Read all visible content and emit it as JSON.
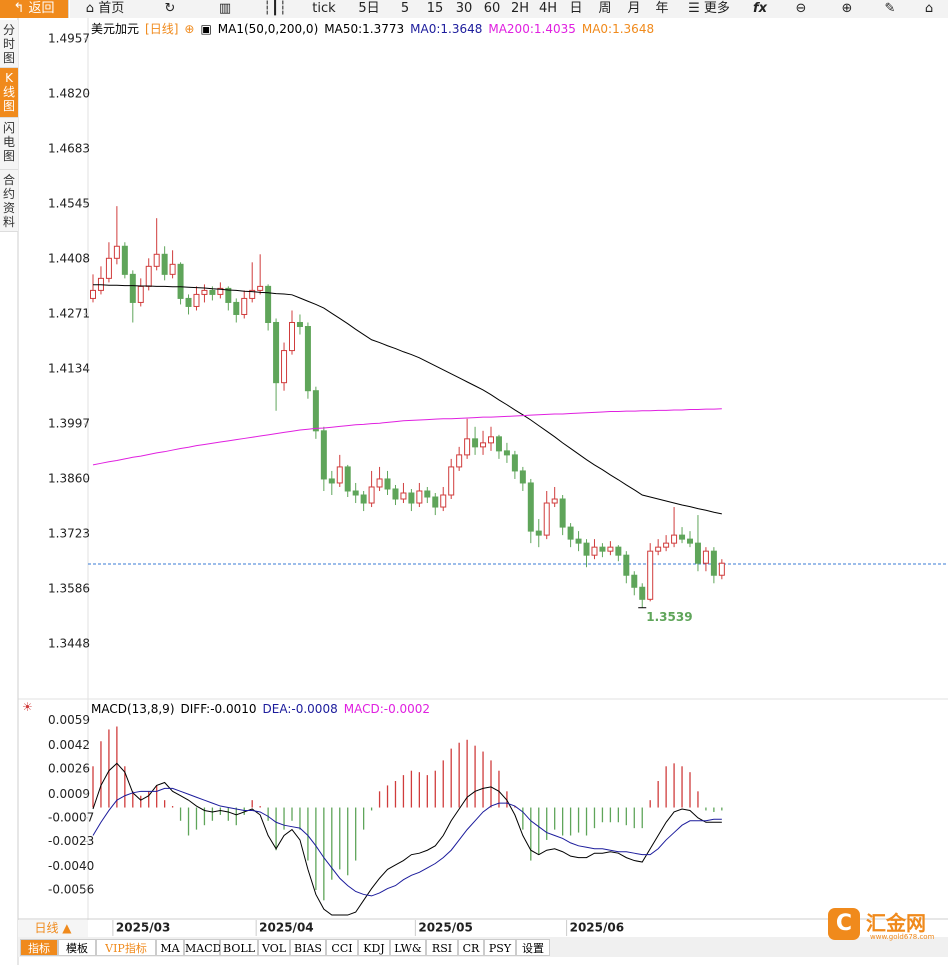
{
  "toolbar": [
    "返回",
    "首页",
    "tick",
    "5日",
    "5",
    "15",
    "30",
    "60",
    "2H",
    "4H",
    "日",
    "周",
    "月",
    "年",
    "更多"
  ],
  "sidebar": [
    "分时图",
    "K线图",
    "闪电图",
    "合约资料"
  ],
  "chart_data": [
    {
      "type": "candlestick",
      "title": "美元加元",
      "period": "[日线]",
      "legend": [
        {
          "text": "MA1(50,0,200,0)",
          "color": "#000000"
        },
        {
          "text": "MA50:1.3773",
          "color": "#000000"
        },
        {
          "text": "MA0:1.3648",
          "color": "#1c1c9c"
        },
        {
          "text": "MA200:1.4035",
          "color": "#e020e0"
        },
        {
          "text": "MA0:1.3648",
          "color": "#f08a1c"
        }
      ],
      "categories": [
        null,
        null,
        null,
        "2025/03",
        null,
        null,
        null,
        null,
        null,
        null,
        null,
        null,
        null,
        null,
        null,
        null,
        null,
        null,
        null,
        null,
        null,
        "2025/04",
        null,
        null,
        null,
        null,
        null,
        null,
        null,
        null,
        null,
        null,
        null,
        null,
        null,
        null,
        null,
        null,
        null,
        null,
        null,
        "2025/05",
        null,
        null,
        null,
        null,
        null,
        null,
        null,
        null,
        null,
        null,
        null,
        null,
        null,
        null,
        null,
        null,
        null,
        null,
        "2025/06",
        null,
        null,
        null,
        null,
        null,
        null,
        null,
        null,
        null,
        null,
        null,
        null,
        null,
        null,
        null,
        null,
        null,
        null,
        null
      ],
      "ohlc": [
        [
          1.431,
          1.437,
          1.43,
          1.433
        ],
        [
          1.433,
          1.439,
          1.432,
          1.436
        ],
        [
          1.436,
          1.445,
          1.435,
          1.441
        ],
        [
          1.441,
          1.454,
          1.4395,
          1.444
        ],
        [
          1.444,
          1.445,
          1.436,
          1.437
        ],
        [
          1.437,
          1.438,
          1.425,
          1.43
        ],
        [
          1.43,
          1.436,
          1.429,
          1.434
        ],
        [
          1.434,
          1.441,
          1.433,
          1.439
        ],
        [
          1.439,
          1.451,
          1.438,
          1.442
        ],
        [
          1.442,
          1.444,
          1.4355,
          1.437
        ],
        [
          1.437,
          1.443,
          1.436,
          1.4395
        ],
        [
          1.4395,
          1.44,
          1.4295,
          1.431
        ],
        [
          1.431,
          1.432,
          1.427,
          1.429
        ],
        [
          1.429,
          1.434,
          1.428,
          1.432
        ],
        [
          1.432,
          1.4345,
          1.43,
          1.433
        ],
        [
          1.433,
          1.434,
          1.4305,
          1.432
        ],
        [
          1.432,
          1.435,
          1.431,
          1.4335
        ],
        [
          1.4335,
          1.434,
          1.428,
          1.43
        ],
        [
          1.43,
          1.431,
          1.425,
          1.427
        ],
        [
          1.427,
          1.433,
          1.426,
          1.431
        ],
        [
          1.431,
          1.44,
          1.43,
          1.433
        ],
        [
          1.433,
          1.442,
          1.432,
          1.434
        ],
        [
          1.434,
          1.4345,
          1.423,
          1.425
        ],
        [
          1.425,
          1.426,
          1.403,
          1.41
        ],
        [
          1.41,
          1.42,
          1.408,
          1.418
        ],
        [
          1.418,
          1.428,
          1.417,
          1.425
        ],
        [
          1.425,
          1.427,
          1.422,
          1.424
        ],
        [
          1.424,
          1.425,
          1.406,
          1.408
        ],
        [
          1.408,
          1.409,
          1.396,
          1.398
        ],
        [
          1.398,
          1.399,
          1.383,
          1.386
        ],
        [
          1.386,
          1.388,
          1.382,
          1.385
        ],
        [
          1.385,
          1.392,
          1.384,
          1.389
        ],
        [
          1.389,
          1.3895,
          1.3815,
          1.383
        ],
        [
          1.383,
          1.385,
          1.38,
          1.382
        ],
        [
          1.382,
          1.383,
          1.378,
          1.38
        ],
        [
          1.38,
          1.388,
          1.379,
          1.384
        ],
        [
          1.384,
          1.389,
          1.383,
          1.386
        ],
        [
          1.386,
          1.388,
          1.382,
          1.3835
        ],
        [
          1.3835,
          1.3845,
          1.3795,
          1.381
        ],
        [
          1.381,
          1.385,
          1.38,
          1.3825
        ],
        [
          1.3825,
          1.3835,
          1.378,
          1.38
        ],
        [
          1.38,
          1.385,
          1.379,
          1.383
        ],
        [
          1.383,
          1.384,
          1.38,
          1.3815
        ],
        [
          1.3815,
          1.3825,
          1.377,
          1.379
        ],
        [
          1.379,
          1.384,
          1.378,
          1.382
        ],
        [
          1.382,
          1.391,
          1.381,
          1.389
        ],
        [
          1.389,
          1.394,
          1.388,
          1.392
        ],
        [
          1.392,
          1.401,
          1.391,
          1.396
        ],
        [
          1.396,
          1.399,
          1.392,
          1.394
        ],
        [
          1.394,
          1.398,
          1.392,
          1.395
        ],
        [
          1.395,
          1.399,
          1.393,
          1.3965
        ],
        [
          1.3965,
          1.397,
          1.391,
          1.393
        ],
        [
          1.393,
          1.395,
          1.39,
          1.392
        ],
        [
          1.392,
          1.393,
          1.386,
          1.388
        ],
        [
          1.388,
          1.389,
          1.383,
          1.385
        ],
        [
          1.385,
          1.386,
          1.37,
          1.373
        ],
        [
          1.373,
          1.376,
          1.369,
          1.372
        ],
        [
          1.372,
          1.383,
          1.371,
          1.38
        ],
        [
          1.38,
          1.384,
          1.379,
          1.381
        ],
        [
          1.381,
          1.382,
          1.372,
          1.374
        ],
        [
          1.374,
          1.375,
          1.369,
          1.371
        ],
        [
          1.371,
          1.373,
          1.368,
          1.37
        ],
        [
          1.37,
          1.371,
          1.364,
          1.367
        ],
        [
          1.367,
          1.371,
          1.366,
          1.369
        ],
        [
          1.369,
          1.37,
          1.3665,
          1.368
        ],
        [
          1.368,
          1.3705,
          1.367,
          1.369
        ],
        [
          1.369,
          1.3695,
          1.3655,
          1.367
        ],
        [
          1.367,
          1.368,
          1.36,
          1.362
        ],
        [
          1.362,
          1.363,
          1.357,
          1.359
        ],
        [
          1.359,
          1.36,
          1.3539,
          1.356
        ],
        [
          1.356,
          1.37,
          1.3555,
          1.368
        ],
        [
          1.368,
          1.371,
          1.367,
          1.369
        ],
        [
          1.369,
          1.372,
          1.368,
          1.37
        ],
        [
          1.37,
          1.379,
          1.369,
          1.372
        ],
        [
          1.372,
          1.374,
          1.37,
          1.371
        ],
        [
          1.371,
          1.373,
          1.369,
          1.37
        ],
        [
          1.37,
          1.377,
          1.363,
          1.365
        ],
        [
          1.365,
          1.369,
          1.363,
          1.368
        ],
        [
          1.368,
          1.369,
          1.36,
          1.362
        ],
        [
          1.362,
          1.366,
          1.361,
          1.365
        ]
      ],
      "up_color": "#d03c3c",
      "down_color": "#5fa55a",
      "series": [
        {
          "color": "#000000",
          "values": [
            1.4344,
            1.4344,
            1.4343,
            1.4343,
            1.4342,
            1.4342,
            1.4341,
            1.4341,
            1.434,
            1.434,
            1.4339,
            1.4339,
            1.4338,
            1.4337,
            1.4336,
            1.4334,
            1.4333,
            1.4331,
            1.433,
            1.4328,
            1.4327,
            1.4325,
            1.4324,
            1.4322,
            1.4321,
            1.4319,
            1.4311,
            1.4303,
            1.4295,
            1.4286,
            1.4273,
            1.426,
            1.4247,
            1.4233,
            1.422,
            1.4207,
            1.42,
            1.4192,
            1.4185,
            1.4177,
            1.417,
            1.4162,
            1.4152,
            1.4142,
            1.4132,
            1.4122,
            1.4112,
            1.4102,
            1.4092,
            1.4082,
            1.407,
            1.4057,
            1.4045,
            1.4032,
            1.402,
            1.4007,
            1.3993,
            1.3979,
            1.3965,
            1.395,
            1.3936,
            1.3922,
            1.3908,
            1.3895,
            1.3883,
            1.387,
            1.3858,
            1.3845,
            1.3833,
            1.382,
            1.3815,
            1.381,
            1.3805,
            1.38,
            1.3795,
            1.3791,
            1.3786,
            1.3782,
            1.3777,
            1.3773
          ]
        },
        {
          "color": "#e020e0",
          "values": [
            1.3895,
            1.3899,
            1.3903,
            1.3906,
            1.391,
            1.3914,
            1.3917,
            1.3921,
            1.3925,
            1.3928,
            1.3932,
            1.3936,
            1.3939,
            1.3943,
            1.3946,
            1.3949,
            1.3952,
            1.3955,
            1.3958,
            1.3961,
            1.3964,
            1.3967,
            1.397,
            1.3973,
            1.3976,
            1.3979,
            1.3982,
            1.3984,
            1.3986,
            1.3987,
            1.3989,
            1.3991,
            1.3993,
            1.3995,
            1.3996,
            1.3998,
            1.3999,
            1.4001,
            1.4003,
            1.4005,
            1.4006,
            1.4007,
            1.4008,
            1.4009,
            1.401,
            1.401,
            1.4011,
            1.4012,
            1.4013,
            1.4014,
            1.4014,
            1.4015,
            1.4016,
            1.4017,
            1.4018,
            1.4019,
            1.402,
            1.4021,
            1.4022,
            1.4022,
            1.4023,
            1.4024,
            1.4025,
            1.4026,
            1.4027,
            1.4028,
            1.4028,
            1.4029,
            1.4029,
            1.403,
            1.403,
            1.4031,
            1.4031,
            1.4032,
            1.4032,
            1.4033,
            1.4033,
            1.4034,
            1.4034,
            1.4035
          ]
        }
      ],
      "last_price": 1.3648,
      "last_price_color": "#3a7bd5",
      "low_label": 1.3539,
      "ylim": [
        1.3314,
        1.5009
      ],
      "yticks": [
        1.4957,
        {
          "value": 1.482,
          "label": "1.4820"
        },
        1.4683,
        1.4545,
        1.4408,
        1.4271,
        1.4134,
        1.3997,
        {
          "value": 1.386,
          "label": "1.3860"
        },
        1.3723,
        1.3586,
        1.3448
      ]
    },
    {
      "type": "macd",
      "legend": [
        {
          "text": "MACD(13,8,9)",
          "color": "#000000"
        },
        {
          "text": "DIFF:-0.0010",
          "color": "#000000"
        },
        {
          "text": "DEA:-0.0008",
          "color": "#1c1c9c"
        },
        {
          "text": "MACD:-0.0002",
          "color": "#e020e0"
        }
      ],
      "histogram": [
        0.0028,
        0.0045,
        0.0053,
        0.0055,
        0.0028,
        0.0011,
        0.0008,
        0.0011,
        0.0015,
        0.0005,
        0.0001,
        -0.0009,
        -0.0019,
        -0.0015,
        -0.0012,
        -0.0009,
        -0.0005,
        -0.0009,
        -0.0012,
        -0.0005,
        0.0005,
        0.0001,
        -0.0009,
        -0.0029,
        -0.0015,
        -0.0009,
        -0.0015,
        -0.0036,
        -0.0056,
        -0.0063,
        -0.0049,
        -0.0042,
        -0.0046,
        -0.0036,
        -0.0015,
        -0.0002,
        0.0011,
        0.0015,
        0.0018,
        0.0022,
        0.0025,
        0.0024,
        0.0022,
        0.0025,
        0.0032,
        0.004,
        0.0044,
        0.0046,
        0.0042,
        0.0038,
        0.0032,
        0.0025,
        0.0011,
        0.0001,
        -0.0015,
        -0.0036,
        -0.0032,
        -0.0022,
        -0.0015,
        -0.0019,
        -0.0019,
        -0.0017,
        -0.0019,
        -0.0014,
        -0.001,
        -0.001,
        -0.001,
        -0.0012,
        -0.0014,
        -0.0014,
        0.0005,
        0.0018,
        0.0028,
        0.003,
        0.0028,
        0.0024,
        0.0011,
        -0.0002,
        -0.0003,
        -0.0002
      ],
      "up_color": "#d03c3c",
      "down_color": "#5fa55a",
      "series": [
        {
          "color": "#000000",
          "values": [
            -0.0001,
            0.0015,
            0.0025,
            0.003,
            0.0024,
            0.001,
            0.0005,
            0.0008,
            0.0015,
            0.0017,
            0.0011,
            0.0008,
            0.0005,
            0.0001,
            -0.0002,
            -0.0003,
            -0.0002,
            -0.0003,
            -0.0005,
            -0.0003,
            -0.0001,
            -0.0005,
            -0.0019,
            -0.0028,
            -0.0019,
            -0.0015,
            -0.0022,
            -0.0042,
            -0.0059,
            -0.0069,
            -0.0073,
            -0.0073,
            -0.0073,
            -0.0071,
            -0.0063,
            -0.0055,
            -0.0048,
            -0.0042,
            -0.0039,
            -0.0036,
            -0.0032,
            -0.0031,
            -0.0029,
            -0.0026,
            -0.0019,
            -0.0009,
            -0.0001,
            0.0007,
            0.0011,
            0.0013,
            0.0014,
            0.0011,
            0.0005,
            -0.0005,
            -0.0019,
            -0.0029,
            -0.0032,
            -0.0029,
            -0.0028,
            -0.003,
            -0.0033,
            -0.0034,
            -0.0034,
            -0.0031,
            -0.0031,
            -0.003,
            -0.0031,
            -0.0034,
            -0.0036,
            -0.0037,
            -0.0028,
            -0.0019,
            -0.001,
            -0.0003,
            -0.0001,
            -0.0002,
            -0.0007,
            -0.001,
            -0.001,
            -0.001
          ]
        },
        {
          "color": "#1c1c9c",
          "values": [
            -0.0019,
            -0.001,
            -0.0002,
            0.0005,
            0.0008,
            0.001,
            0.0011,
            0.0011,
            0.0011,
            0.0013,
            0.0013,
            0.0011,
            0.0009,
            0.0007,
            0.0005,
            0.0003,
            0.0001,
            0.0,
            -0.0001,
            -0.0002,
            -0.0002,
            -0.0003,
            -0.0006,
            -0.001,
            -0.0012,
            -0.0013,
            -0.0014,
            -0.0019,
            -0.0026,
            -0.0034,
            -0.0041,
            -0.0048,
            -0.0053,
            -0.0057,
            -0.0059,
            -0.006,
            -0.0058,
            -0.0055,
            -0.0053,
            -0.0049,
            -0.0046,
            -0.0044,
            -0.0041,
            -0.0038,
            -0.0034,
            -0.0029,
            -0.0022,
            -0.0015,
            -0.0009,
            -0.0003,
            0.0001,
            0.0003,
            0.0003,
            0.0001,
            -0.0003,
            -0.0009,
            -0.0013,
            -0.0017,
            -0.0019,
            -0.0021,
            -0.0024,
            -0.0026,
            -0.0027,
            -0.0028,
            -0.0028,
            -0.0029,
            -0.003,
            -0.003,
            -0.0031,
            -0.0032,
            -0.0032,
            -0.0028,
            -0.0022,
            -0.0017,
            -0.0012,
            -0.0009,
            -0.0009,
            -0.0009,
            -0.0008,
            -0.0008
          ]
        }
      ],
      "ylim": [
        -0.0075,
        0.0073
      ],
      "yticks": [
        0.0059,
        0.0042,
        0.0026,
        0.0009,
        -0.0007,
        -0.0023,
        {
          "value": -0.004,
          "label": "-0.0040"
        },
        -0.0056
      ]
    }
  ],
  "period_button": "日线 ▲",
  "tabs": [
    "指标",
    "模板",
    "VIP指标",
    "MA",
    "MACD",
    "BOLL",
    "VOL",
    "BIAS",
    "CCI",
    "KDJ",
    "LW&",
    "RSI",
    "CR",
    "PSY",
    "设置"
  ],
  "logo": {
    "name": "汇金网",
    "url": "www.gold678.com"
  }
}
